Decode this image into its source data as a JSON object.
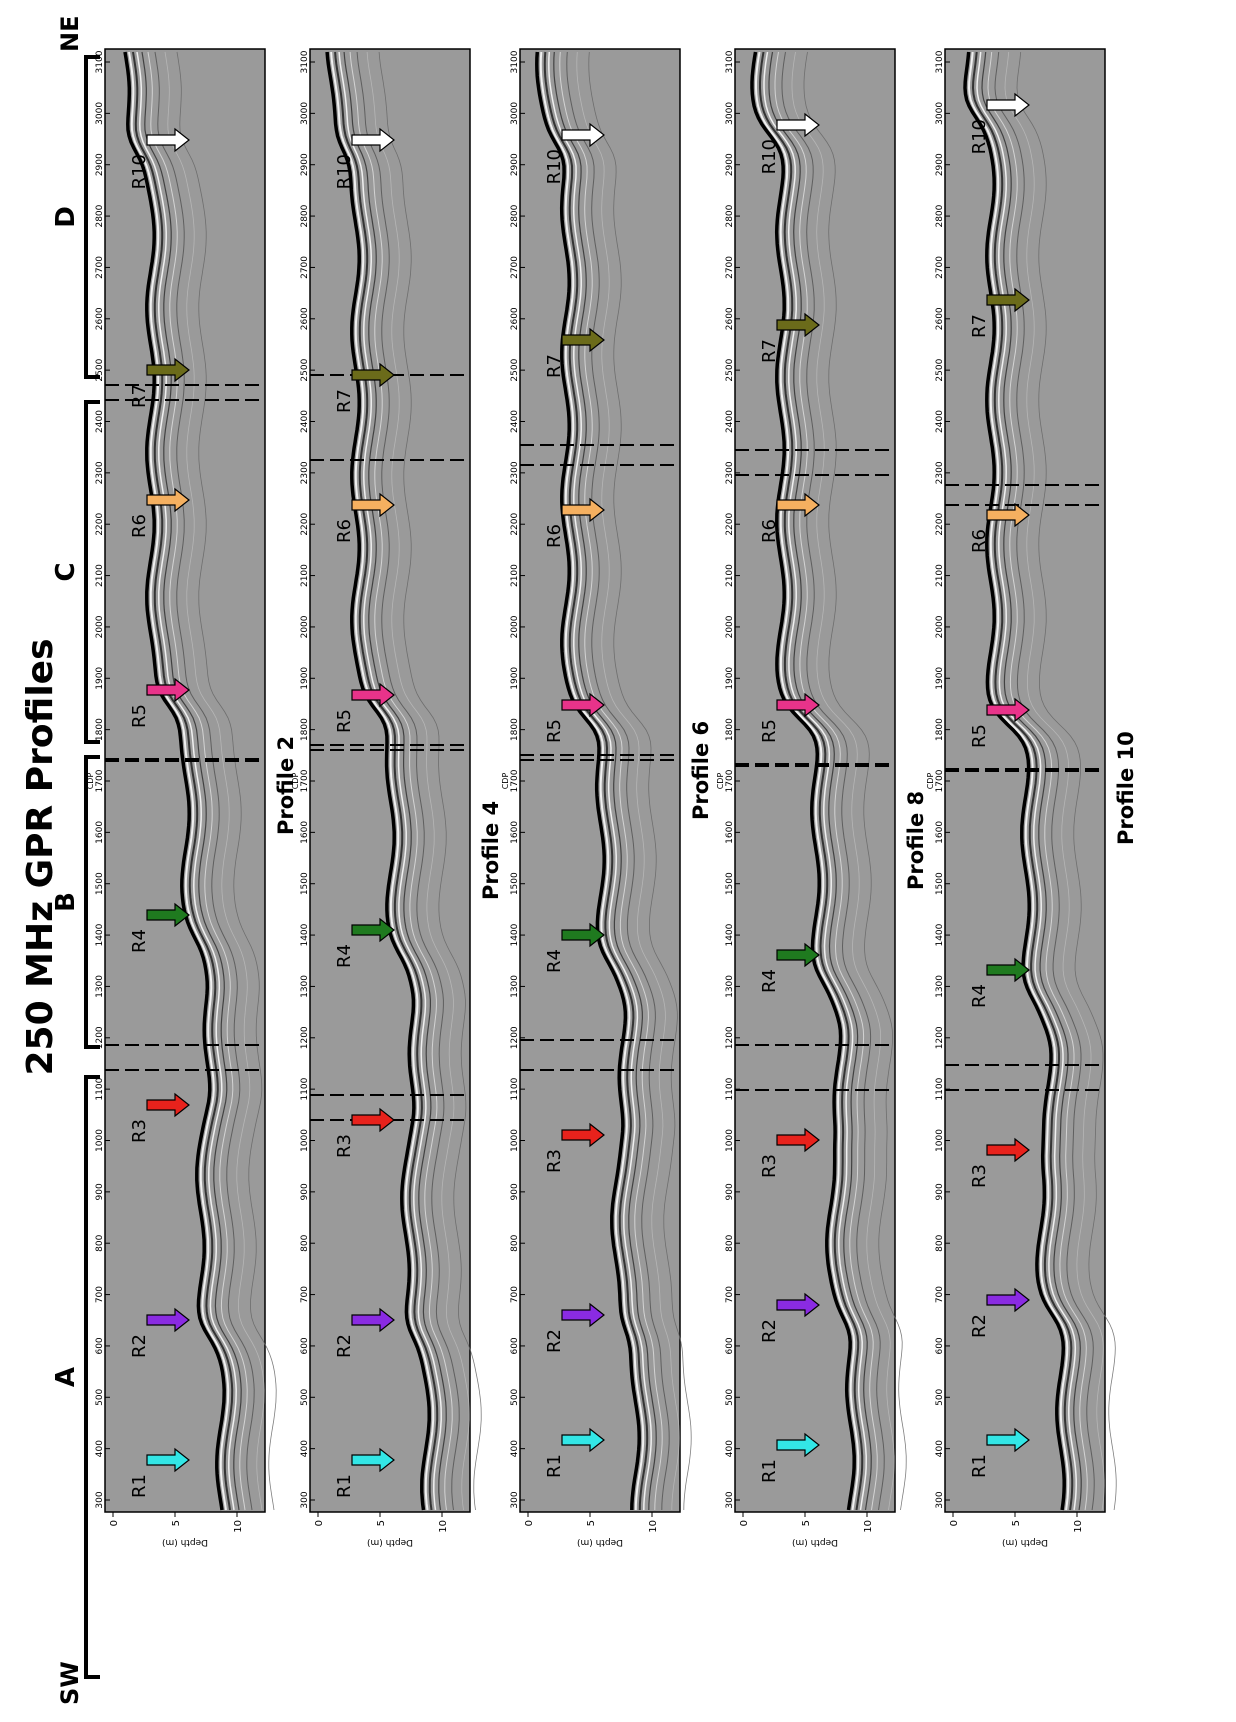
{
  "title": "250 MHz GPR Profiles",
  "directions": {
    "sw": "SW",
    "ne": "NE"
  },
  "sections": [
    "A",
    "B",
    "C",
    "D"
  ],
  "cdp_label": "CDP",
  "depth_label": "Depth (m)",
  "cdp_ticks": [
    300,
    400,
    500,
    600,
    700,
    800,
    900,
    1000,
    1100,
    1200,
    1300,
    1400,
    1500,
    1600,
    1700,
    1800,
    1900,
    2000,
    2100,
    2200,
    2300,
    2400,
    2500,
    2600,
    2700,
    2800,
    2900,
    3000,
    3100
  ],
  "depth_ticks": [
    0,
    5,
    10
  ],
  "reflectors": [
    {
      "label": "R1",
      "color": "#33e6e6"
    },
    {
      "label": "R2",
      "color": "#8a2be2"
    },
    {
      "label": "R3",
      "color": "#e8221c"
    },
    {
      "label": "R4",
      "color": "#1f7a1f"
    },
    {
      "label": "R5",
      "color": "#e8338a"
    },
    {
      "label": "R6",
      "color": "#f5b060"
    },
    {
      "label": "R7",
      "color": "#6b6b1a"
    },
    {
      "label": "R10",
      "color": "#ffffff"
    }
  ],
  "profiles": [
    {
      "label": "Profile 2"
    },
    {
      "label": "Profile 4"
    },
    {
      "label": "Profile 6"
    },
    {
      "label": "Profile 8"
    },
    {
      "label": "Profile 10"
    }
  ]
}
